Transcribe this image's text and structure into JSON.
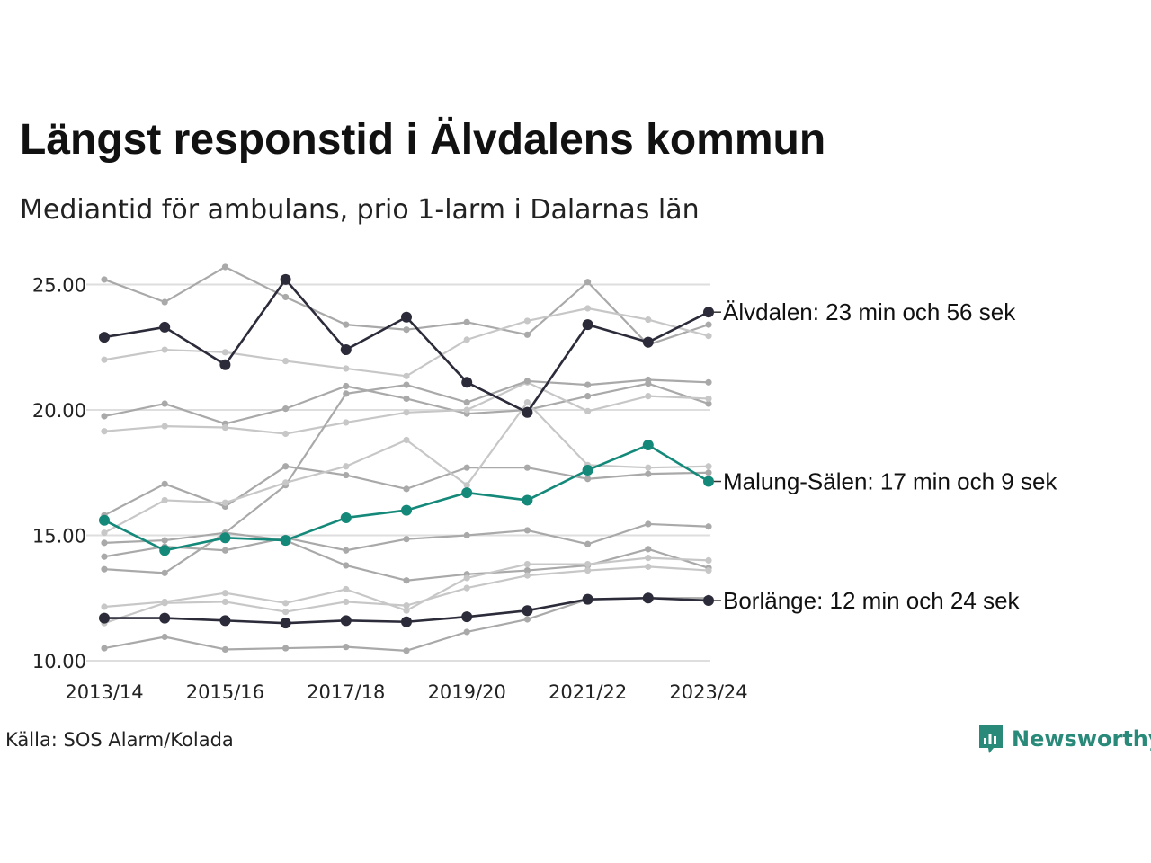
{
  "title": "Längst responstid i Älvdalens kommun",
  "subtitle": "Mediantid för ambulans, prio 1-larm i Dalarnas län",
  "source": "Källa: SOS Alarm/Kolada",
  "brand": {
    "name": "Newsworthy",
    "icon": "newsworthy-logo-icon",
    "color": "#2a8a7a"
  },
  "chart_data": {
    "type": "line",
    "x": [
      "2013/14",
      "2014/15",
      "2015/16",
      "2016/17",
      "2017/18",
      "2018/19",
      "2019/20",
      "2020/21",
      "2021/22",
      "2022/23",
      "2023/24"
    ],
    "x_tick_labels": [
      "2013/14",
      "2015/16",
      "2017/18",
      "2019/20",
      "2021/22",
      "2023/24"
    ],
    "y_ticks": [
      "10.00",
      "15.00",
      "20.00",
      "25.00"
    ],
    "ylim": [
      10,
      25.9
    ],
    "grid": "horizontal",
    "colors": {
      "background_series": [
        "#a9a9a9",
        "#c7c7c7"
      ],
      "dark": "#2b2b3a",
      "teal": "#14897a"
    },
    "series": [
      {
        "name": "Älvdalen",
        "label": "Älvdalen: 23 min och 56 sek",
        "highlight": "dark",
        "values": [
          22.9,
          23.3,
          21.8,
          25.2,
          22.4,
          23.7,
          21.1,
          19.9,
          23.4,
          22.7,
          23.9
        ]
      },
      {
        "name": "Malung-Sälen",
        "label": "Malung-Sälen: 17 min och 9 sek",
        "highlight": "teal",
        "values": [
          15.6,
          14.4,
          14.9,
          14.8,
          15.7,
          16.0,
          16.7,
          16.4,
          17.6,
          18.6,
          17.15
        ]
      },
      {
        "name": "Borlänge",
        "label": "Borlänge: 12 min och 24 sek",
        "highlight": "dark",
        "values": [
          11.7,
          11.7,
          11.6,
          11.5,
          11.6,
          11.55,
          11.75,
          12.0,
          12.45,
          12.5,
          12.4
        ]
      },
      {
        "shade": "mid",
        "values": [
          25.2,
          24.3,
          25.7,
          24.5,
          23.4,
          23.2,
          23.5,
          23.0,
          25.1,
          22.6,
          23.4
        ]
      },
      {
        "shade": "light",
        "values": [
          22.0,
          22.4,
          22.3,
          21.95,
          21.65,
          21.35,
          22.8,
          23.55,
          24.05,
          23.6,
          22.95
        ]
      },
      {
        "shade": "mid",
        "values": [
          19.75,
          20.25,
          19.45,
          20.05,
          20.95,
          20.45,
          19.85,
          20.0,
          20.55,
          21.05,
          20.25
        ]
      },
      {
        "shade": "mid",
        "values": [
          15.8,
          17.05,
          16.15,
          17.75,
          17.4,
          16.85,
          17.7,
          17.7,
          17.25,
          17.45,
          17.5
        ]
      },
      {
        "shade": "light",
        "values": [
          19.15,
          19.35,
          19.3,
          19.05,
          19.5,
          19.9,
          20.0,
          21.1,
          19.95,
          20.55,
          20.45
        ]
      },
      {
        "shade": "mid",
        "values": [
          14.7,
          14.8,
          15.1,
          17.0,
          20.65,
          21.0,
          20.3,
          21.15,
          21.0,
          21.2,
          21.1
        ]
      },
      {
        "shade": "light",
        "values": [
          15.1,
          16.4,
          16.3,
          17.1,
          17.75,
          18.8,
          17.0,
          20.3,
          17.8,
          17.7,
          17.75
        ]
      },
      {
        "shade": "mid",
        "values": [
          14.15,
          14.55,
          14.4,
          14.9,
          14.4,
          14.85,
          15.0,
          15.2,
          14.65,
          15.45,
          15.35
        ]
      },
      {
        "shade": "mid",
        "values": [
          13.65,
          13.5,
          15.1,
          14.8,
          13.8,
          13.2,
          13.45,
          13.6,
          13.8,
          14.45,
          13.7
        ]
      },
      {
        "shade": "light",
        "values": [
          12.15,
          12.35,
          12.7,
          12.3,
          12.85,
          12.0,
          13.3,
          13.85,
          13.85,
          14.1,
          14.0
        ]
      },
      {
        "shade": "light",
        "values": [
          11.5,
          12.3,
          12.35,
          11.95,
          12.35,
          12.2,
          12.9,
          13.4,
          13.6,
          13.75,
          13.6
        ]
      },
      {
        "shade": "mid",
        "values": [
          10.5,
          10.95,
          10.45,
          10.5,
          10.55,
          10.4,
          11.15,
          11.65,
          12.45,
          12.5,
          12.5
        ]
      }
    ]
  }
}
